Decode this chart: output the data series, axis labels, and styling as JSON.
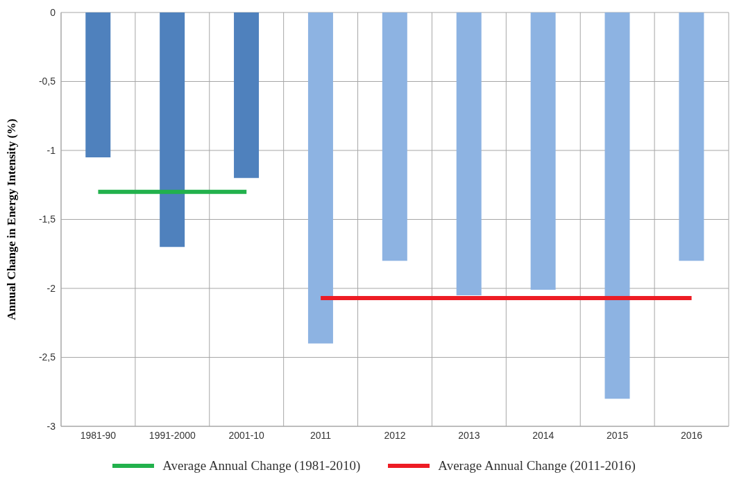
{
  "chart_data": {
    "type": "bar",
    "ylabel": "Annual Change in Energy Intensity (%)",
    "categories": [
      "1981-90",
      "1991-2000",
      "2001-10",
      "2011",
      "2012",
      "2013",
      "2014",
      "2015",
      "2016"
    ],
    "series": [
      {
        "colors": [
          "#4f81bd",
          "#4f81bd",
          "#4f81bd",
          "#8db3e2",
          "#8db3e2",
          "#8db3e2",
          "#8db3e2",
          "#8db3e2",
          "#8db3e2"
        ],
        "values": [
          -1.05,
          -1.7,
          -1.2,
          -2.4,
          -1.8,
          -2.05,
          -2.01,
          -2.8,
          -1.8
        ]
      },
      {
        "type": "line",
        "name": "Average Annual Change (1981-2010)",
        "color": "#22b14c",
        "values": [
          -1.3,
          -1.3,
          -1.3,
          null,
          null,
          null,
          null,
          null,
          null
        ]
      },
      {
        "type": "line",
        "name": "Average Annual Change (2011-2016)",
        "color": "#ed1c24",
        "values": [
          null,
          null,
          null,
          -2.07,
          -2.07,
          -2.07,
          -2.07,
          -2.07,
          -2.07
        ]
      }
    ],
    "ylim": [
      -3,
      0
    ],
    "yticks": [
      0,
      {
        "value": -0.5,
        "label": "-0,5"
      },
      -1,
      {
        "value": -1.5,
        "label": "-1,5"
      },
      -2,
      {
        "value": -2.5,
        "label": "-2,5"
      },
      -3
    ],
    "grid": true,
    "legend": "bottom"
  }
}
